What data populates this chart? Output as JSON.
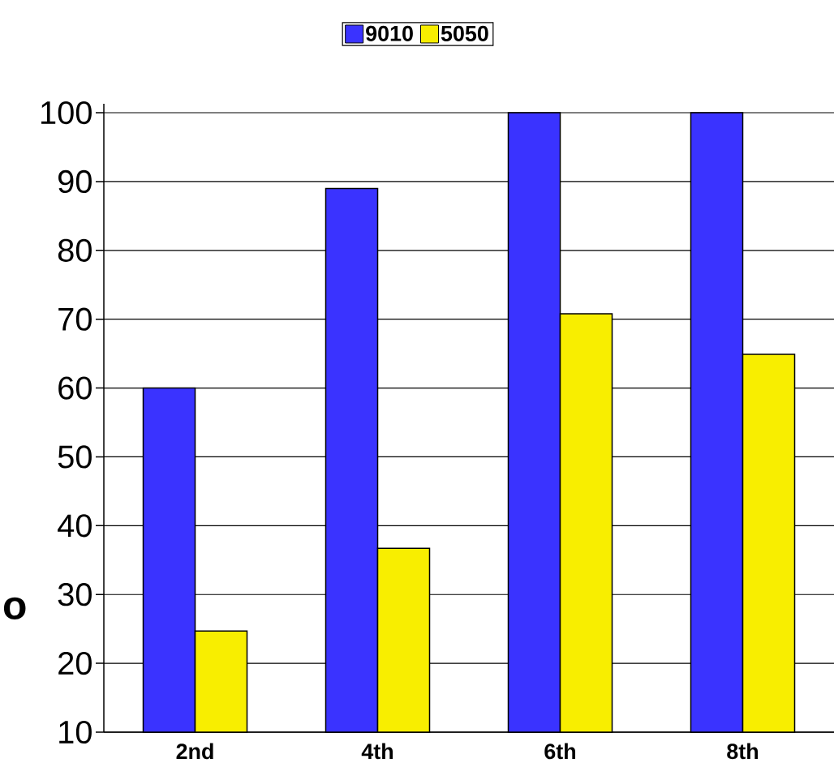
{
  "chart_data": {
    "type": "bar",
    "ylabel": "o",
    "categories": [
      "2nd",
      "4th",
      "6th",
      "8th"
    ],
    "series": [
      {
        "name": "9010",
        "color": "#3a33ff",
        "values": [
          60,
          89,
          100,
          100
        ]
      },
      {
        "name": "5050",
        "color": "#f8ee00",
        "values": [
          24.7,
          36.7,
          70.8,
          64.9
        ]
      }
    ],
    "ylim": [
      10,
      101.3
    ],
    "yticks": [
      10,
      20,
      30,
      40,
      50,
      60,
      70,
      80,
      90,
      100
    ],
    "grid": "y",
    "legend": "top"
  }
}
